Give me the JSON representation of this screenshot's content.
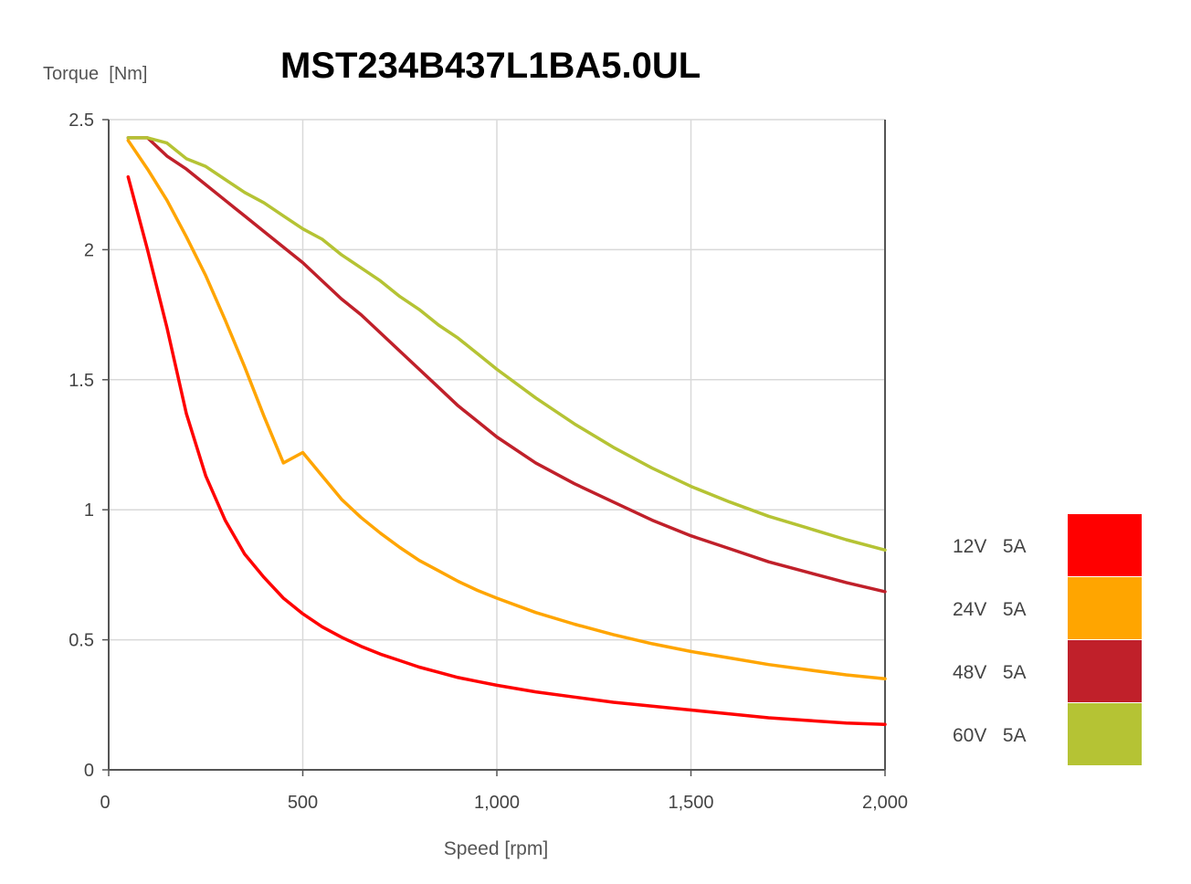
{
  "chart_data": {
    "type": "line",
    "title": "MST234B437L1BA5.0UL",
    "xlabel": "Speed [rpm]",
    "ylabel": "Torque  [Nm]",
    "xlim": [
      0,
      2000
    ],
    "ylim": [
      0,
      2.5
    ],
    "x_ticks": [
      0,
      500,
      1000,
      1500,
      2000
    ],
    "x_tick_labels": [
      "0",
      "500",
      "1,000",
      "1,500",
      "2,000"
    ],
    "y_ticks": [
      0,
      0.5,
      1,
      1.5,
      2,
      2.5
    ],
    "y_tick_labels": [
      "0",
      "0.5",
      "1",
      "1.5",
      "2",
      "2.5"
    ],
    "grid": true,
    "legend_position": "right",
    "series": [
      {
        "name": "12V   5A",
        "color": "#ff0000",
        "points": [
          [
            50,
            2.28
          ],
          [
            100,
            2.0
          ],
          [
            150,
            1.7
          ],
          [
            200,
            1.37
          ],
          [
            250,
            1.13
          ],
          [
            300,
            0.96
          ],
          [
            350,
            0.83
          ],
          [
            400,
            0.74
          ],
          [
            450,
            0.66
          ],
          [
            500,
            0.6
          ],
          [
            550,
            0.55
          ],
          [
            600,
            0.51
          ],
          [
            650,
            0.475
          ],
          [
            700,
            0.445
          ],
          [
            750,
            0.42
          ],
          [
            800,
            0.395
          ],
          [
            850,
            0.375
          ],
          [
            900,
            0.355
          ],
          [
            950,
            0.34
          ],
          [
            1000,
            0.325
          ],
          [
            1100,
            0.3
          ],
          [
            1200,
            0.28
          ],
          [
            1300,
            0.26
          ],
          [
            1400,
            0.245
          ],
          [
            1500,
            0.23
          ],
          [
            1600,
            0.215
          ],
          [
            1700,
            0.2
          ],
          [
            1800,
            0.19
          ],
          [
            1900,
            0.18
          ],
          [
            2000,
            0.175
          ]
        ]
      },
      {
        "name": "24V   5A",
        "color": "#ffa500",
        "points": [
          [
            50,
            2.42
          ],
          [
            100,
            2.31
          ],
          [
            150,
            2.19
          ],
          [
            200,
            2.05
          ],
          [
            250,
            1.9
          ],
          [
            300,
            1.73
          ],
          [
            350,
            1.55
          ],
          [
            400,
            1.36
          ],
          [
            450,
            1.18
          ],
          [
            500,
            1.22
          ],
          [
            550,
            1.13
          ],
          [
            600,
            1.04
          ],
          [
            650,
            0.97
          ],
          [
            700,
            0.91
          ],
          [
            750,
            0.855
          ],
          [
            800,
            0.805
          ],
          [
            850,
            0.765
          ],
          [
            900,
            0.725
          ],
          [
            950,
            0.69
          ],
          [
            1000,
            0.66
          ],
          [
            1100,
            0.605
          ],
          [
            1200,
            0.56
          ],
          [
            1300,
            0.52
          ],
          [
            1400,
            0.485
          ],
          [
            1500,
            0.455
          ],
          [
            1600,
            0.43
          ],
          [
            1700,
            0.405
          ],
          [
            1800,
            0.385
          ],
          [
            1900,
            0.365
          ],
          [
            2000,
            0.35
          ]
        ]
      },
      {
        "name": "48V   5A",
        "color": "#c0202a",
        "points": [
          [
            50,
            2.43
          ],
          [
            100,
            2.43
          ],
          [
            150,
            2.36
          ],
          [
            200,
            2.31
          ],
          [
            250,
            2.25
          ],
          [
            300,
            2.19
          ],
          [
            350,
            2.13
          ],
          [
            400,
            2.07
          ],
          [
            450,
            2.01
          ],
          [
            500,
            1.95
          ],
          [
            550,
            1.88
          ],
          [
            600,
            1.81
          ],
          [
            650,
            1.75
          ],
          [
            700,
            1.68
          ],
          [
            750,
            1.61
          ],
          [
            800,
            1.54
          ],
          [
            850,
            1.47
          ],
          [
            900,
            1.4
          ],
          [
            950,
            1.34
          ],
          [
            1000,
            1.28
          ],
          [
            1100,
            1.18
          ],
          [
            1200,
            1.1
          ],
          [
            1300,
            1.03
          ],
          [
            1400,
            0.96
          ],
          [
            1500,
            0.9
          ],
          [
            1600,
            0.85
          ],
          [
            1700,
            0.8
          ],
          [
            1800,
            0.76
          ],
          [
            1900,
            0.72
          ],
          [
            2000,
            0.685
          ]
        ]
      },
      {
        "name": "60V   5A",
        "color": "#b5c334",
        "points": [
          [
            50,
            2.43
          ],
          [
            100,
            2.43
          ],
          [
            150,
            2.41
          ],
          [
            200,
            2.35
          ],
          [
            250,
            2.32
          ],
          [
            300,
            2.27
          ],
          [
            350,
            2.22
          ],
          [
            400,
            2.18
          ],
          [
            450,
            2.13
          ],
          [
            500,
            2.08
          ],
          [
            550,
            2.04
          ],
          [
            600,
            1.98
          ],
          [
            650,
            1.93
          ],
          [
            700,
            1.88
          ],
          [
            750,
            1.82
          ],
          [
            800,
            1.77
          ],
          [
            850,
            1.71
          ],
          [
            900,
            1.66
          ],
          [
            950,
            1.6
          ],
          [
            1000,
            1.54
          ],
          [
            1100,
            1.43
          ],
          [
            1200,
            1.33
          ],
          [
            1300,
            1.24
          ],
          [
            1400,
            1.16
          ],
          [
            1500,
            1.09
          ],
          [
            1600,
            1.03
          ],
          [
            1700,
            0.975
          ],
          [
            1800,
            0.93
          ],
          [
            1900,
            0.885
          ],
          [
            2000,
            0.845
          ]
        ]
      }
    ]
  }
}
